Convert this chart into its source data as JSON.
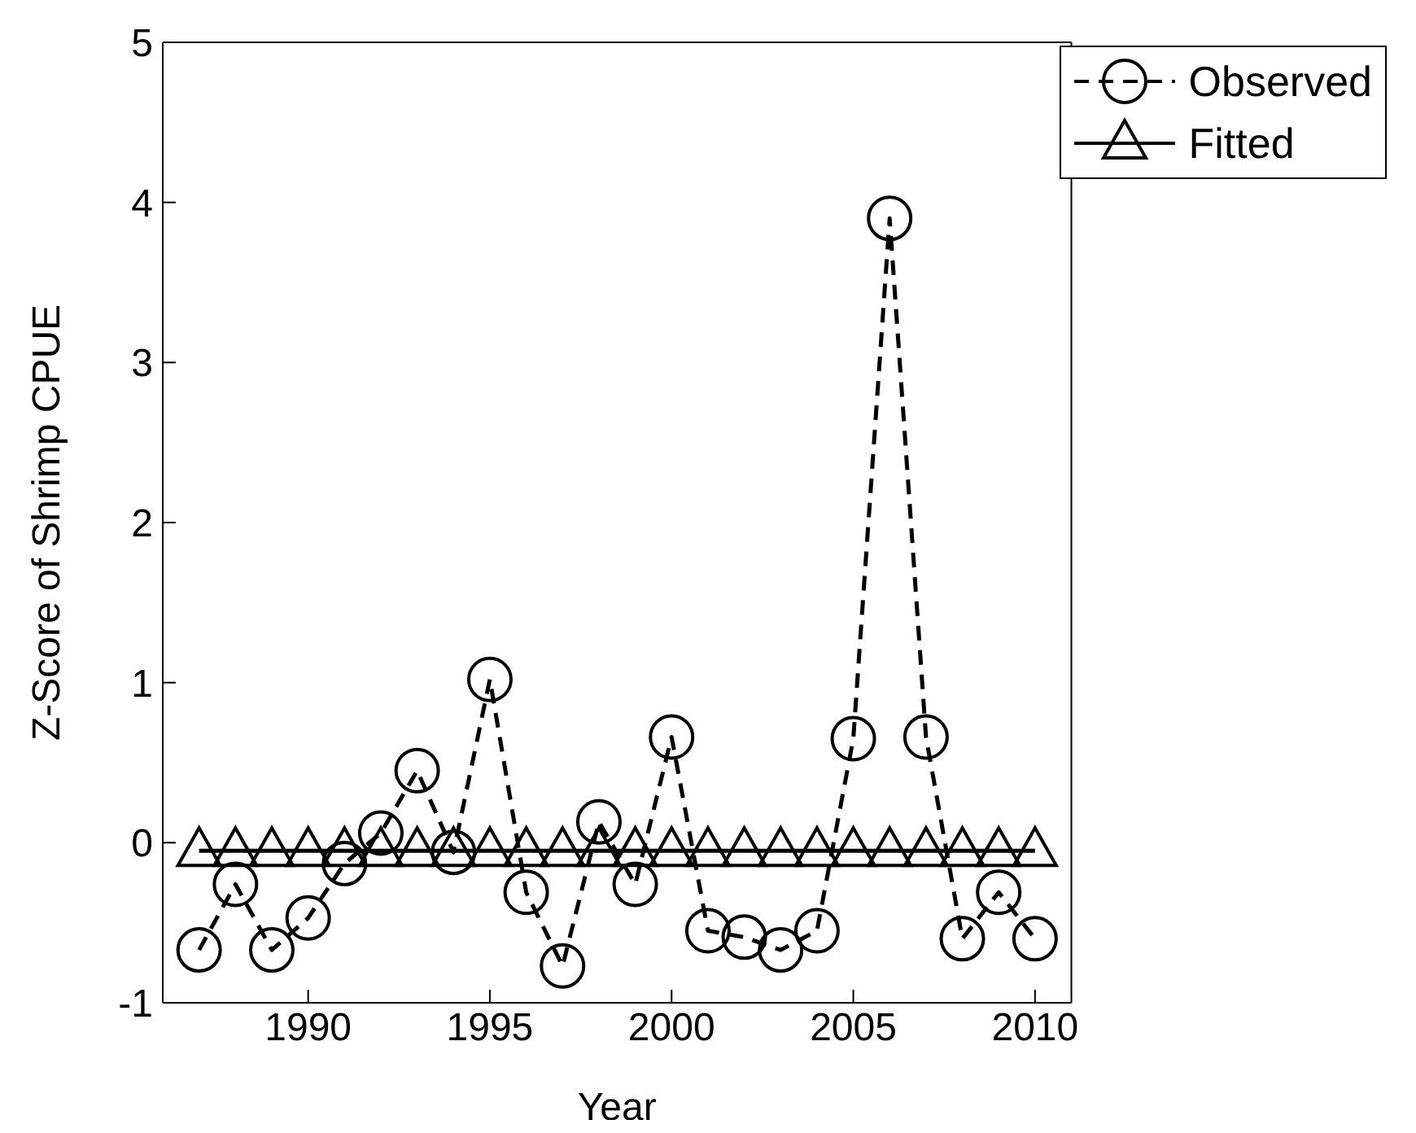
{
  "chart_data": {
    "type": "line",
    "xlabel": "Year",
    "ylabel": "Z-Score of Shrimp CPUE",
    "x": [
      1987,
      1988,
      1989,
      1990,
      1991,
      1992,
      1993,
      1994,
      1995,
      1996,
      1997,
      1998,
      1999,
      2000,
      2001,
      2002,
      2003,
      2004,
      2005,
      2006,
      2007,
      2008,
      2009,
      2010
    ],
    "series": [
      {
        "name": "Observed",
        "color": "#000000",
        "marker": "circle",
        "line_style": "dashed",
        "values": [
          -0.67,
          -0.26,
          -0.67,
          -0.47,
          -0.13,
          0.06,
          0.45,
          -0.06,
          1.02,
          -0.31,
          -0.77,
          0.13,
          -0.26,
          0.66,
          -0.55,
          -0.59,
          -0.67,
          -0.55,
          0.65,
          3.9,
          0.66,
          -0.6,
          -0.31,
          -0.6
        ]
      },
      {
        "name": "Fitted",
        "color": "#000000",
        "marker": "triangle",
        "line_style": "solid",
        "values": [
          -0.05,
          -0.05,
          -0.05,
          -0.05,
          -0.05,
          -0.05,
          -0.05,
          -0.05,
          -0.05,
          -0.05,
          -0.05,
          -0.05,
          -0.05,
          -0.05,
          -0.05,
          -0.05,
          -0.05,
          -0.05,
          -0.05,
          -0.05,
          -0.05,
          -0.05,
          -0.05,
          -0.05
        ]
      }
    ],
    "xlim": [
      1986,
      2011
    ],
    "xticks": [
      1990,
      1995,
      2000,
      2005,
      2010
    ],
    "ylim": [
      -1,
      5
    ],
    "yticks": [
      -1,
      0,
      1,
      2,
      3,
      4,
      5
    ],
    "grid": false,
    "legend": "top right"
  }
}
